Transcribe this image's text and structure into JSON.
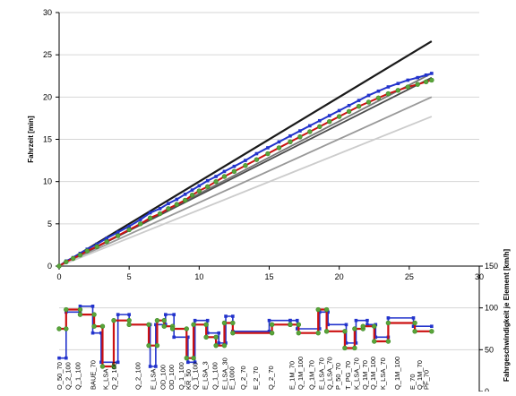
{
  "chart_data": [
    {
      "type": "line",
      "title": "",
      "xlabel": "",
      "ylabel": "Fahrzeit [min]",
      "xlim": [
        0,
        30
      ],
      "ylim": [
        0,
        30
      ],
      "x_ticks": [
        "0",
        "5",
        "10",
        "15",
        "20",
        "25",
        "30"
      ],
      "y_ticks": [
        "0",
        "5",
        "10",
        "15",
        "20",
        "25",
        "30"
      ],
      "grid": "horizontal",
      "legend": "none",
      "series": [
        {
          "color": "#1a1a1a",
          "width": 2.2,
          "marker": "none",
          "x": [
            0,
            26.6
          ],
          "y": [
            0,
            26.6
          ]
        },
        {
          "color": "#777777",
          "width": 1.8,
          "marker": "none",
          "x": [
            0,
            26.6
          ],
          "y": [
            0,
            22.8
          ]
        },
        {
          "color": "#4d4d4d",
          "width": 1.8,
          "marker": "none",
          "x": [
            0,
            26.6
          ],
          "y": [
            0,
            22.3
          ]
        },
        {
          "color": "#999999",
          "width": 1.8,
          "marker": "none",
          "x": [
            0,
            26.6
          ],
          "y": [
            0,
            20.0
          ]
        },
        {
          "color": "#cccccc",
          "width": 1.8,
          "marker": "none",
          "x": [
            0,
            26.6
          ],
          "y": [
            0,
            17.7
          ]
        },
        {
          "color": "#2233cc",
          "width": 2,
          "marker": "square",
          "x": [
            0,
            0.5,
            1,
            1.5,
            2,
            2.7,
            3.4,
            4.2,
            5,
            5.8,
            6.5,
            7.2,
            7.8,
            8.4,
            9,
            9.5,
            10,
            10.6,
            11.2,
            11.8,
            12.5,
            13.3,
            14.1,
            14.9,
            15.7,
            16.5,
            17.2,
            17.9,
            18.6,
            19.3,
            20,
            20.7,
            21.4,
            22.1,
            22.8,
            23.5,
            24.2,
            24.9,
            25.6,
            26.2,
            26.6
          ],
          "y": [
            0,
            0.6,
            1.0,
            1.5,
            2.0,
            2.6,
            3.3,
            4.0,
            4.7,
            5.5,
            6.3,
            6.8,
            7.4,
            7.9,
            8.5,
            9.0,
            9.5,
            10.1,
            10.6,
            11.2,
            11.8,
            12.5,
            13.3,
            14.0,
            14.7,
            15.4,
            16.0,
            16.6,
            17.2,
            17.8,
            18.4,
            19.0,
            19.6,
            20.2,
            20.7,
            21.2,
            21.6,
            22.0,
            22.3,
            22.6,
            22.8
          ]
        },
        {
          "color": "#cc1111",
          "width": 2,
          "marker": "circle",
          "x": [
            0,
            0.5,
            1,
            1.5,
            2,
            2.7,
            3.4,
            4.2,
            5,
            5.8,
            6.5,
            7.2,
            7.8,
            8.4,
            9,
            9.5,
            10,
            10.6,
            11.2,
            11.8,
            12.5,
            13.3,
            14.1,
            14.9,
            15.7,
            16.5,
            17.2,
            17.9,
            18.6,
            19.3,
            20,
            20.7,
            21.4,
            22.1,
            22.8,
            23.5,
            24.2,
            24.9,
            25.6,
            26.2,
            26.6
          ],
          "y": [
            0,
            0.5,
            0.9,
            1.3,
            1.8,
            2.3,
            2.9,
            3.6,
            4.3,
            5.0,
            5.7,
            6.2,
            6.8,
            7.3,
            7.8,
            8.4,
            8.9,
            9.4,
            10.0,
            10.6,
            11.2,
            11.9,
            12.6,
            13.3,
            14.0,
            14.7,
            15.3,
            15.9,
            16.5,
            17.1,
            17.7,
            18.3,
            18.9,
            19.4,
            19.9,
            20.4,
            20.8,
            21.2,
            21.5,
            21.8,
            22.0
          ]
        }
      ]
    },
    {
      "type": "line",
      "title": "",
      "xlabel": "",
      "ylabel": "Fahrgeschwindigkeit je Element [km/h]",
      "xlim": [
        0,
        30
      ],
      "ylim": [
        0,
        150
      ],
      "y_ticks": [
        "0",
        "50",
        "100",
        "150"
      ],
      "grid": "horizontal",
      "legend": "none",
      "route_labels": [
        {
          "x": 0.0,
          "text": "O_50_70"
        },
        {
          "x": 0.6,
          "text": "Q_2_100"
        },
        {
          "x": 1.3,
          "text": "Q_1_100"
        },
        {
          "x": 2.4,
          "text": "BAUE_70"
        },
        {
          "x": 3.3,
          "text": "K_LSA"
        },
        {
          "x": 3.9,
          "text": "Q_2_100"
        },
        {
          "x": 5.6,
          "text": "Q_2_100"
        },
        {
          "x": 6.7,
          "text": "E_LSA"
        },
        {
          "x": 7.4,
          "text": "OD_100"
        },
        {
          "x": 8.0,
          "text": "OD_100"
        },
        {
          "x": 8.7,
          "text": "Q_1_100"
        },
        {
          "x": 9.2,
          "text": "KR_50"
        },
        {
          "x": 9.7,
          "text": "Q_1_100"
        },
        {
          "x": 10.4,
          "text": "E_LSA_3"
        },
        {
          "x": 11.1,
          "text": "Q_1_100"
        },
        {
          "x": 11.8,
          "text": "E_LSA_30"
        },
        {
          "x": 12.3,
          "text": "E_1000"
        },
        {
          "x": 13.1,
          "text": "Q_2_70"
        },
        {
          "x": 14.0,
          "text": "E_2_70"
        },
        {
          "x": 15.1,
          "text": "Q_2_70"
        },
        {
          "x": 16.6,
          "text": "E_1M_70"
        },
        {
          "x": 17.2,
          "text": "Q_1M_100"
        },
        {
          "x": 18.0,
          "text": "Q_1M_70"
        },
        {
          "x": 18.7,
          "text": "E_LSA_70"
        },
        {
          "x": 19.3,
          "text": "Q_LSA_70"
        },
        {
          "x": 19.9,
          "text": "P_50_70"
        },
        {
          "x": 20.6,
          "text": "T_PG_70"
        },
        {
          "x": 21.2,
          "text": "K_LSA_70"
        },
        {
          "x": 21.8,
          "text": "Q_1M_70"
        },
        {
          "x": 22.4,
          "text": "Q_1M_100"
        },
        {
          "x": 23.1,
          "text": "K_LSA_70"
        },
        {
          "x": 24.1,
          "text": "Q_1M_100"
        },
        {
          "x": 25.2,
          "text": "E_70"
        },
        {
          "x": 25.7,
          "text": "Q_1M_70"
        },
        {
          "x": 26.2,
          "text": "PF_70"
        }
      ],
      "series": [
        {
          "color": "#2233cc",
          "width": 1.6,
          "marker": "square",
          "x": [
            0,
            0.5,
            0.5,
            1.5,
            1.5,
            2.4,
            2.4,
            3.0,
            3.0,
            4.2,
            4.2,
            5.0,
            5.0,
            6.5,
            6.5,
            6.9,
            6.9,
            7.6,
            7.6,
            8.2,
            8.2,
            9.2,
            9.2,
            9.7,
            9.7,
            10.6,
            10.6,
            11.4,
            11.4,
            11.9,
            11.9,
            12.4,
            12.4,
            15.0,
            15.0,
            16.5,
            16.5,
            17.0,
            17.0,
            18.6,
            18.6,
            19.2,
            19.2,
            20.5,
            20.5,
            21.2,
            21.2,
            22.0,
            22.0,
            22.6,
            22.6,
            23.5,
            23.5,
            25.3,
            25.3,
            26.6
          ],
          "y": [
            40,
            40,
            95,
            95,
            102,
            102,
            70,
            70,
            35,
            35,
            92,
            92,
            80,
            80,
            30,
            30,
            80,
            80,
            92,
            92,
            65,
            65,
            35,
            35,
            85,
            85,
            70,
            70,
            58,
            58,
            90,
            90,
            72,
            72,
            85,
            85,
            85,
            85,
            75,
            75,
            95,
            95,
            80,
            80,
            58,
            58,
            85,
            85,
            80,
            80,
            65,
            65,
            88,
            88,
            78,
            78
          ]
        },
        {
          "color": "#cc1111",
          "width": 2.2,
          "marker": "circle",
          "x": [
            0,
            0.5,
            0.5,
            1.5,
            1.5,
            2.5,
            2.5,
            3.1,
            3.1,
            3.9,
            3.9,
            5.0,
            5.0,
            6.4,
            6.4,
            7.0,
            7.0,
            7.5,
            7.5,
            8.1,
            8.1,
            9.1,
            9.1,
            9.6,
            9.6,
            10.5,
            10.5,
            11.2,
            11.2,
            11.8,
            11.8,
            12.4,
            12.4,
            15.2,
            15.2,
            16.5,
            16.5,
            17.1,
            17.1,
            18.5,
            18.5,
            19.1,
            19.1,
            20.4,
            20.4,
            21.1,
            21.1,
            21.7,
            21.7,
            22.5,
            22.5,
            23.5,
            23.5,
            25.4,
            25.4,
            26.6
          ],
          "y": [
            75,
            75,
            98,
            98,
            92,
            92,
            78,
            78,
            30,
            30,
            85,
            85,
            80,
            80,
            55,
            55,
            85,
            85,
            78,
            78,
            75,
            75,
            40,
            40,
            80,
            80,
            65,
            65,
            55,
            55,
            82,
            82,
            70,
            70,
            80,
            80,
            80,
            80,
            70,
            70,
            98,
            98,
            72,
            72,
            52,
            52,
            75,
            75,
            78,
            78,
            60,
            60,
            82,
            82,
            72,
            72
          ]
        }
      ]
    }
  ]
}
